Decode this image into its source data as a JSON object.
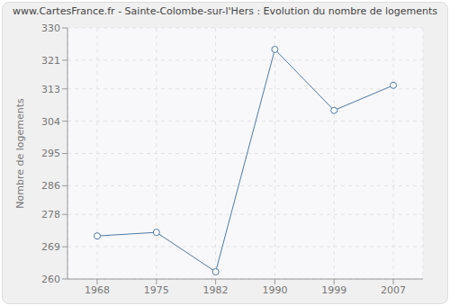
{
  "chart_data": {
    "type": "line",
    "title": "www.CartesFrance.fr - Sainte-Colombe-sur-l'Hers : Evolution du nombre de logements",
    "y_label": "Nombre de logements",
    "categories": [
      1968,
      1975,
      1982,
      1990,
      1999,
      2007
    ],
    "values": [
      272,
      273,
      262,
      324,
      307,
      314
    ],
    "color": "#4e7aa6",
    "marker": "circle",
    "ylim": [
      260,
      330
    ],
    "yticks": [
      260,
      269,
      278,
      286,
      295,
      304,
      313,
      321,
      330
    ],
    "grid": true
  }
}
